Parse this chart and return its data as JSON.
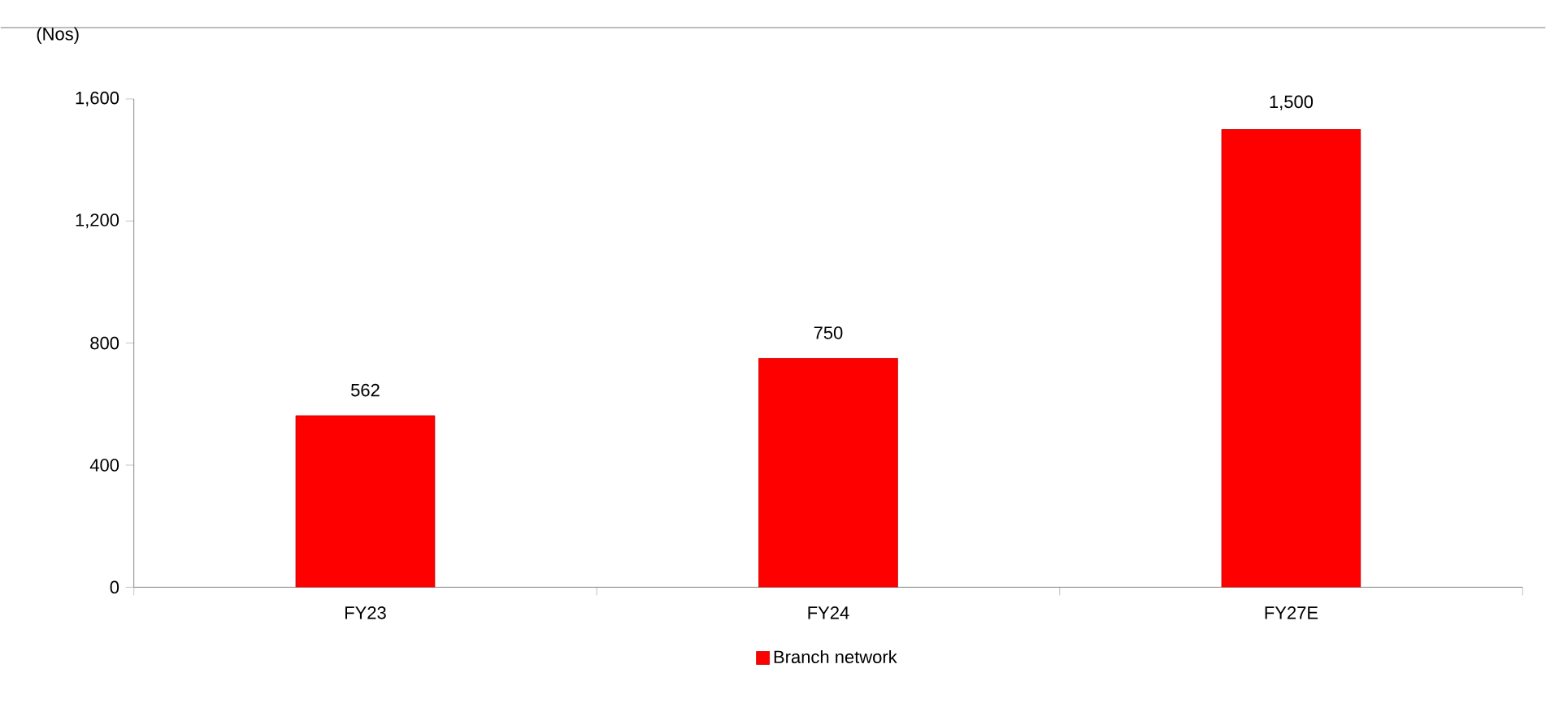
{
  "chart_data": {
    "type": "bar",
    "ylabel": "(Nos)",
    "categories": [
      "FY23",
      "FY24",
      "FY27E"
    ],
    "series": [
      {
        "name": "Branch network",
        "color": "#ff0000",
        "values": [
          562,
          750,
          1500
        ],
        "value_labels": [
          "562",
          "750",
          "1,500"
        ]
      }
    ],
    "ylim": [
      0,
      1600
    ],
    "yticks": [
      0,
      400,
      800,
      {
        "value": 1200,
        "label": "1,200"
      },
      {
        "value": 1600,
        "label": "1,600"
      }
    ],
    "legend": "bottom",
    "grid": false
  }
}
